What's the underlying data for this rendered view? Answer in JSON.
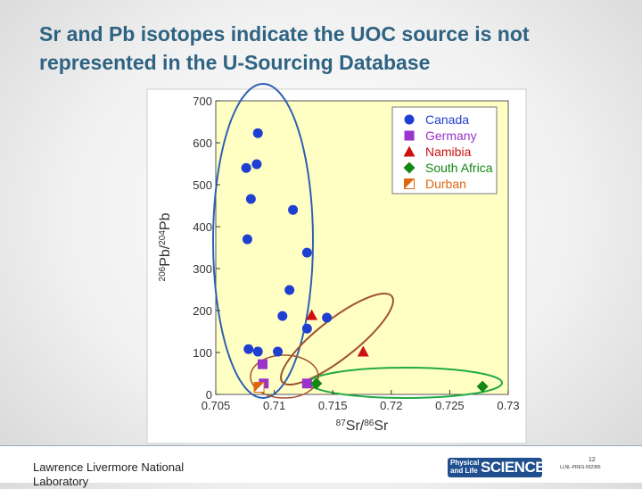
{
  "header": {
    "title": "Sr and Pb isotopes indicate the UOC source is not represented in the U-Sourcing Database"
  },
  "chart_data": {
    "type": "scatter",
    "xlabel": "87Sr/86Sr",
    "ylabel": "206Pb/204Pb",
    "xlim": [
      0.705,
      0.73
    ],
    "xticks": [
      0.705,
      0.71,
      0.715,
      0.72,
      0.725,
      0.73
    ],
    "ylim": [
      0,
      700
    ],
    "yticks": [
      0,
      100,
      200,
      300,
      400,
      500,
      600,
      700
    ],
    "legend": "upper right",
    "series": [
      {
        "name": "Canada",
        "color": "#1f3fd0",
        "marker": "circle",
        "x": [
          0.7086,
          0.7076,
          0.7085,
          0.708,
          0.7116,
          0.7077,
          0.7128,
          0.7113,
          0.7107,
          0.7145,
          0.7128,
          0.7078,
          0.7086,
          0.7103
        ],
        "y": [
          623,
          540,
          549,
          466,
          440,
          370,
          338,
          249,
          187,
          183,
          157,
          108,
          102,
          102
        ]
      },
      {
        "name": "Germany",
        "color": "#9933cc",
        "marker": "square",
        "x": [
          0.709,
          0.7091,
          0.7128
        ],
        "y": [
          72,
          26,
          26
        ]
      },
      {
        "name": "Namibia",
        "color": "#cc1111",
        "marker": "triangle",
        "x": [
          0.7132,
          0.7176
        ],
        "y": [
          189,
          102
        ]
      },
      {
        "name": "South Africa",
        "color": "#118811",
        "marker": "diamond",
        "x": [
          0.7136,
          0.7278
        ],
        "y": [
          26,
          19
        ]
      },
      {
        "name": "Durban",
        "color": "#dd6611",
        "marker": "half-square",
        "x": [
          0.7087
        ],
        "y": [
          17
        ]
      }
    ]
  },
  "footer": {
    "org": "Lawrence Livermore National Laboratory",
    "logo_small": "Physical and Life",
    "logo_big": "SCIENCES",
    "page": "12",
    "code": "LLNL-PRES-592385"
  }
}
